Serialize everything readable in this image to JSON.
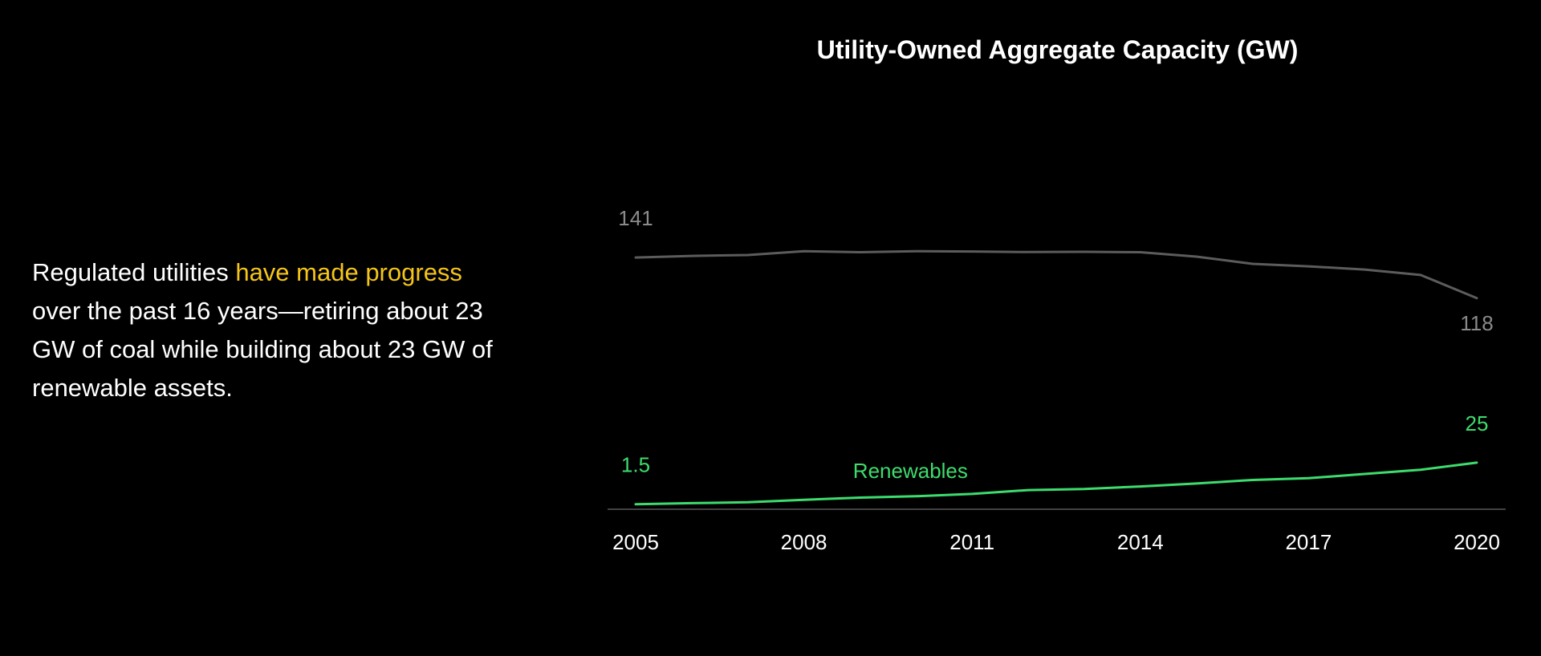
{
  "headline": {
    "before": "Regulated utilities ",
    "highlight": "have made progress",
    "after": " over the past 16 years—retiring about 23 GW of coal while building about 23 GW of renewable assets."
  },
  "colors": {
    "background": "#000000",
    "text": "#ffffff",
    "highlight": "#f5c518",
    "coal": "#5c5c5c",
    "coal_label": "#8a8a8a",
    "renewables": "#3ddc6e",
    "axis": "#6a6a6a"
  },
  "chart_data": {
    "type": "line",
    "title": "Utility-Owned Aggregate Capacity (GW)",
    "xlabel": "",
    "ylabel": "",
    "x": [
      2005,
      2006,
      2007,
      2008,
      2009,
      2010,
      2011,
      2012,
      2013,
      2014,
      2015,
      2016,
      2017,
      2018,
      2019,
      2020
    ],
    "x_ticks": [
      "2005",
      "2008",
      "2011",
      "2014",
      "2017",
      "2020"
    ],
    "ylim": [
      0,
      141
    ],
    "grid": false,
    "legend": "none",
    "series": [
      {
        "values": [
          141,
          141.9,
          142.4,
          144.6,
          144.0,
          144.6,
          144.4,
          144.1,
          144.2,
          144.0,
          141.5,
          137.4,
          136.0,
          134.2,
          131.1,
          118
        ]
      },
      {
        "name": "Renewables",
        "values": [
          1.5,
          2.1,
          2.6,
          4.0,
          5.2,
          6.0,
          7.3,
          9.5,
          10.1,
          11.5,
          13.2,
          15.2,
          16.2,
          18.6,
          21.0,
          25
        ]
      }
    ],
    "annotations": {
      "coal_start": "141",
      "coal_end": "118",
      "renewables_start": "1.5",
      "renewables_end": "25",
      "renewables_label": "Renewables"
    }
  }
}
